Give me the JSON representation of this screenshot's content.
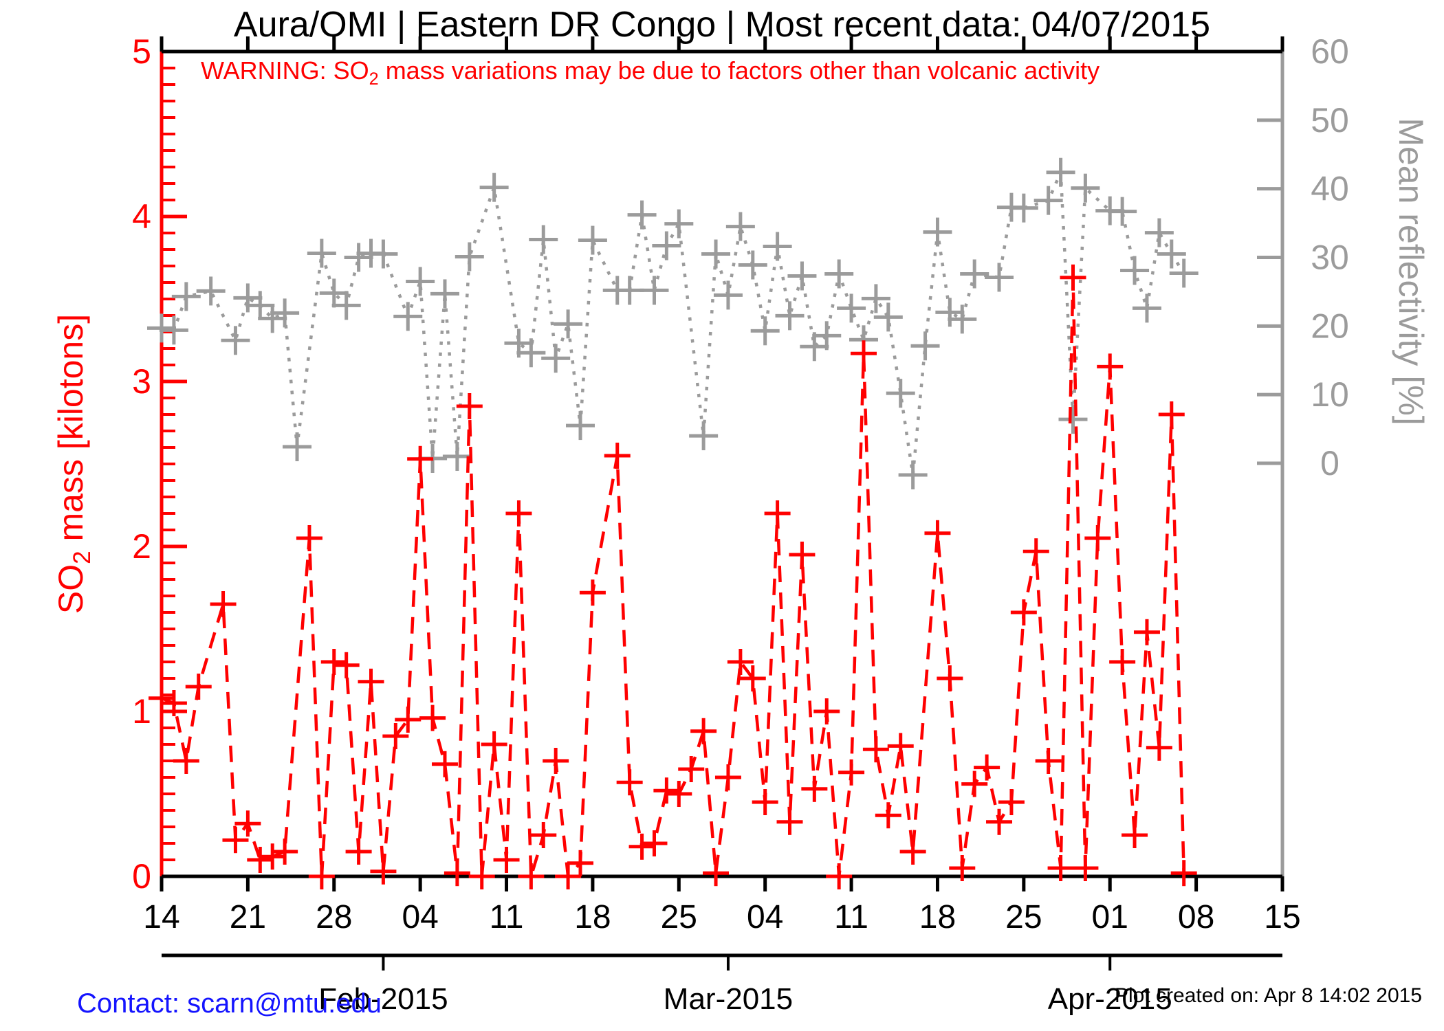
{
  "page": {
    "title": "Aura/OMI | Eastern DR Congo | Most recent data: 04/07/2015",
    "warning": {
      "pre": "WARNING: SO",
      "sub": "2",
      "post": " mass variations may be due to factors other than volcanic activity"
    },
    "footer": {
      "contact": "Contact: scarn@mtu.edu",
      "created": "Plot created on: Apr  8 14:02 2015"
    }
  },
  "colors": {
    "so2": "#ff0000",
    "reflectivity": "#9b9b9b",
    "axis": "#000000",
    "contact_link": "#1414ff",
    "background": "#ffffff"
  },
  "chart_data": {
    "type": "line",
    "title": "Aura/OMI | Eastern DR Congo | Most recent data: 04/07/2015",
    "annotation": "WARNING: SO2 mass variations may be due to factors other than volcanic activity",
    "xlabel": "",
    "x_dates": [
      "01/14",
      "01/15",
      "01/16",
      "01/17",
      "01/18",
      "01/19",
      "01/20",
      "01/21",
      "01/22",
      "01/23",
      "01/24",
      "01/25",
      "01/26",
      "01/27",
      "01/28",
      "01/29",
      "01/30",
      "01/31",
      "02/01",
      "02/02",
      "02/03",
      "02/04",
      "02/05",
      "02/06",
      "02/07",
      "02/08",
      "02/09",
      "02/10",
      "02/11",
      "02/12",
      "02/13",
      "02/14",
      "02/15",
      "02/16",
      "02/17",
      "02/18",
      "02/19",
      "02/20",
      "02/21",
      "02/22",
      "02/23",
      "02/24",
      "02/25",
      "02/26",
      "02/27",
      "02/28",
      "03/01",
      "03/02",
      "03/03",
      "03/04",
      "03/05",
      "03/06",
      "03/07",
      "03/08",
      "03/09",
      "03/10",
      "03/11",
      "03/12",
      "03/13",
      "03/14",
      "03/15",
      "03/16",
      "03/17",
      "03/18",
      "03/19",
      "03/20",
      "03/21",
      "03/22",
      "03/23",
      "03/24",
      "03/25",
      "03/26",
      "03/27",
      "03/28",
      "03/29",
      "03/30",
      "03/31",
      "04/01",
      "04/02",
      "04/03",
      "04/04",
      "04/05",
      "04/06",
      "04/07"
    ],
    "series": [
      {
        "name": "SO2 mass",
        "units": "kilotons",
        "axis": "left",
        "color": "#ff0000",
        "line_style": "dashed",
        "marker": "plus",
        "values": [
          1.08,
          1.05,
          0.7,
          1.15,
          null,
          1.65,
          0.22,
          0.32,
          0.1,
          0.12,
          0.15,
          null,
          2.05,
          0.0,
          1.3,
          1.28,
          0.15,
          1.18,
          0.03,
          0.85,
          0.95,
          2.53,
          0.96,
          0.68,
          0.02,
          2.85,
          0.0,
          0.8,
          0.1,
          2.2,
          0.0,
          0.25,
          0.7,
          0.0,
          0.08,
          1.72,
          null,
          2.55,
          0.57,
          0.18,
          0.2,
          0.52,
          0.5,
          0.65,
          0.88,
          0.02,
          0.6,
          1.3,
          1.2,
          0.45,
          2.2,
          0.33,
          1.95,
          0.53,
          1.0,
          0.0,
          0.63,
          3.17,
          0.77,
          0.37,
          0.79,
          0.15,
          null,
          2.08,
          1.2,
          0.05,
          0.56,
          0.66,
          0.33,
          0.45,
          1.6,
          1.97,
          0.7,
          0.05,
          3.63,
          0.05,
          2.05,
          3.09,
          1.3,
          0.25,
          1.48,
          0.78,
          2.8,
          0.02
        ]
      },
      {
        "name": "Mean reflectivity",
        "units": "%",
        "axis": "right",
        "color": "#9b9b9b",
        "line_style": "dotted",
        "marker": "plus",
        "values": [
          19.7,
          19.4,
          24.3,
          null,
          25.1,
          null,
          17.9,
          24.1,
          23.0,
          21.1,
          21.9,
          2.4,
          null,
          30.6,
          24.8,
          23.0,
          30.0,
          30.6,
          30.5,
          null,
          21.4,
          26.5,
          0.7,
          24.7,
          1.0,
          30.1,
          null,
          40.2,
          null,
          17.5,
          16.1,
          32.6,
          15.3,
          20.3,
          5.5,
          32.5,
          null,
          25.2,
          25.2,
          36.2,
          25.2,
          31.7,
          34.9,
          null,
          4.0,
          30.5,
          24.5,
          34.5,
          28.9,
          19.3,
          31.6,
          21.5,
          27.3,
          17.0,
          18.6,
          27.6,
          22.6,
          18.0,
          24.0,
          21.3,
          10.2,
          -1.7,
          17.1,
          33.7,
          22.0,
          21.0,
          27.6,
          null,
          27.1,
          37.3,
          37.2,
          null,
          38.3,
          42.4,
          6.4,
          40.1,
          null,
          36.8,
          36.7,
          28.1,
          22.6,
          33.6,
          30.5,
          27.7
        ]
      }
    ],
    "y_left": {
      "label": "SO2 mass [kilotons]",
      "range": [
        0,
        5
      ],
      "ticks": [
        "0",
        "1",
        "2",
        "3",
        "4",
        "5"
      ],
      "minor_step": 0.1,
      "color": "#ff0000"
    },
    "y_right": {
      "label": "Mean reflectivity [%]",
      "ticks": [
        "0",
        "10",
        "20",
        "30",
        "40",
        "50",
        "60"
      ],
      "color": "#9b9b9b"
    },
    "x_axis": {
      "start_date": "2015-01-14",
      "end_date": "2015-04-15",
      "tick_days": [
        0,
        7,
        14,
        21,
        28,
        35,
        42,
        49,
        56,
        63,
        70,
        77,
        84,
        91
      ],
      "tick_labels": [
        "14",
        "21",
        "28",
        "04",
        "11",
        "18",
        "25",
        "04",
        "11",
        "18",
        "25",
        "01",
        "08",
        "15"
      ],
      "month_ticks": [
        {
          "label": "Feb-2015",
          "day": 18
        },
        {
          "label": "Mar-2015",
          "day": 46
        },
        {
          "label": "Apr-2015",
          "day": 77
        }
      ]
    },
    "legend": "none",
    "grid": "off"
  }
}
